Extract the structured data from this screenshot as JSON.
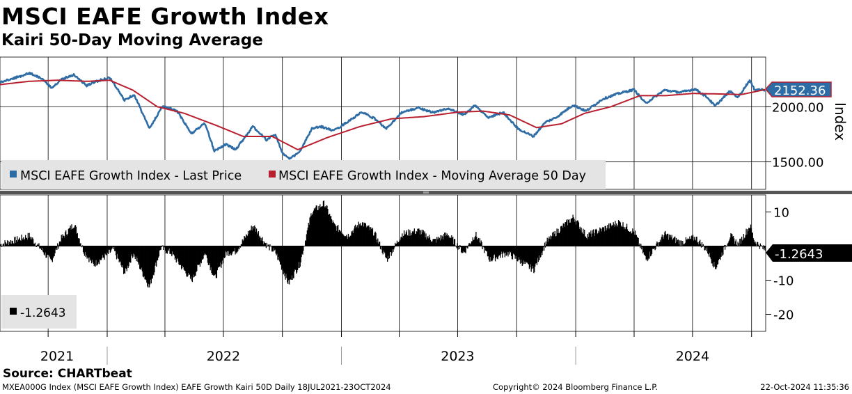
{
  "header": {
    "title": "MSCI EAFE Growth Index",
    "subtitle": "Kairi 50-Day Moving Average"
  },
  "footer": {
    "source": "Source: CHARTbeat",
    "description": "MXEA000G Index (MSCI EAFE Growth Index) EAFE Growth Kairi 50D  Daily 18JUL2021-23OCT2024",
    "copyright": "Copyright© 2024 Bloomberg Finance L.P.",
    "timestamp": "22-Oct-2024 11:35:36"
  },
  "colors": {
    "price": "#2e6ca5",
    "ma": "#b8202f",
    "kairi": "#000000",
    "grid": "#000000"
  },
  "chart_data": [
    {
      "type": "line",
      "panel": "upper",
      "ylabel": "Index",
      "ylim": [
        1250,
        2450
      ],
      "yticks": [
        1500,
        2000
      ],
      "ytick_labels": [
        "1500.00",
        "2000.00"
      ],
      "last_value_label": "2152.36",
      "x_range": [
        "2021-07-18",
        "2024-10-23"
      ],
      "x_year_labels": [
        "2021",
        "2022",
        "2023",
        "2024"
      ],
      "series": [
        {
          "name": "MSCI EAFE Growth Index - Last Price",
          "color": "#2e6ca5",
          "points": [
            [
              "2021-07-18",
              2220
            ],
            [
              "2021-08-10",
              2260
            ],
            [
              "2021-09-02",
              2305
            ],
            [
              "2021-09-20",
              2260
            ],
            [
              "2021-10-06",
              2170
            ],
            [
              "2021-10-22",
              2250
            ],
            [
              "2021-11-10",
              2290
            ],
            [
              "2021-11-30",
              2190
            ],
            [
              "2021-12-15",
              2230
            ],
            [
              "2022-01-05",
              2265
            ],
            [
              "2022-01-28",
              2060
            ],
            [
              "2022-02-12",
              2110
            ],
            [
              "2022-03-08",
              1800
            ],
            [
              "2022-03-28",
              2005
            ],
            [
              "2022-04-20",
              1960
            ],
            [
              "2022-05-12",
              1755
            ],
            [
              "2022-06-02",
              1850
            ],
            [
              "2022-06-17",
              1600
            ],
            [
              "2022-07-05",
              1660
            ],
            [
              "2022-07-20",
              1610
            ],
            [
              "2022-08-16",
              1820
            ],
            [
              "2022-09-06",
              1700
            ],
            [
              "2022-09-20",
              1750
            ],
            [
              "2022-10-01",
              1580
            ],
            [
              "2022-10-12",
              1525
            ],
            [
              "2022-10-28",
              1590
            ],
            [
              "2022-11-16",
              1800
            ],
            [
              "2022-12-01",
              1820
            ],
            [
              "2022-12-20",
              1780
            ],
            [
              "2023-01-15",
              1880
            ],
            [
              "2023-02-02",
              1950
            ],
            [
              "2023-02-22",
              1890
            ],
            [
              "2023-03-12",
              1800
            ],
            [
              "2023-04-04",
              1945
            ],
            [
              "2023-05-01",
              1990
            ],
            [
              "2023-05-25",
              1945
            ],
            [
              "2023-06-15",
              1985
            ],
            [
              "2023-07-10",
              1925
            ],
            [
              "2023-07-28",
              2010
            ],
            [
              "2023-08-18",
              1900
            ],
            [
              "2023-09-10",
              1950
            ],
            [
              "2023-10-03",
              1800
            ],
            [
              "2023-10-27",
              1730
            ],
            [
              "2023-11-15",
              1860
            ],
            [
              "2023-12-01",
              1900
            ],
            [
              "2023-12-28",
              2015
            ],
            [
              "2024-01-17",
              1960
            ],
            [
              "2024-02-12",
              2070
            ],
            [
              "2024-03-08",
              2120
            ],
            [
              "2024-04-01",
              2155
            ],
            [
              "2024-04-19",
              2030
            ],
            [
              "2024-05-18",
              2150
            ],
            [
              "2024-06-12",
              2130
            ],
            [
              "2024-07-05",
              2160
            ],
            [
              "2024-07-24",
              2085
            ],
            [
              "2024-08-05",
              2005
            ],
            [
              "2024-08-28",
              2140
            ],
            [
              "2024-09-10",
              2085
            ],
            [
              "2024-09-28",
              2240
            ],
            [
              "2024-10-05",
              2160
            ],
            [
              "2024-10-22",
              2152
            ]
          ]
        },
        {
          "name": "MSCI EAFE Growth Index - Moving Average 50 Day",
          "color": "#b8202f",
          "points": [
            [
              "2021-07-18",
              2200
            ],
            [
              "2021-09-01",
              2230
            ],
            [
              "2021-10-15",
              2240
            ],
            [
              "2021-12-01",
              2230
            ],
            [
              "2022-01-05",
              2240
            ],
            [
              "2022-02-10",
              2150
            ],
            [
              "2022-03-20",
              2000
            ],
            [
              "2022-05-01",
              1940
            ],
            [
              "2022-06-20",
              1830
            ],
            [
              "2022-08-01",
              1730
            ],
            [
              "2022-09-15",
              1730
            ],
            [
              "2022-10-25",
              1610
            ],
            [
              "2022-12-10",
              1720
            ],
            [
              "2023-01-30",
              1820
            ],
            [
              "2023-03-20",
              1890
            ],
            [
              "2023-05-10",
              1910
            ],
            [
              "2023-07-01",
              1950
            ],
            [
              "2023-08-10",
              1960
            ],
            [
              "2023-09-20",
              1925
            ],
            [
              "2023-11-01",
              1810
            ],
            [
              "2023-12-10",
              1845
            ],
            [
              "2024-01-15",
              1940
            ],
            [
              "2024-02-25",
              2000
            ],
            [
              "2024-04-10",
              2100
            ],
            [
              "2024-05-20",
              2100
            ],
            [
              "2024-07-01",
              2120
            ],
            [
              "2024-08-15",
              2115
            ],
            [
              "2024-09-15",
              2110
            ],
            [
              "2024-10-22",
              2155
            ]
          ]
        }
      ]
    },
    {
      "type": "area",
      "panel": "lower",
      "ylim": [
        -25,
        15
      ],
      "yticks": [
        10,
        -10,
        -20
      ],
      "ytick_labels": [
        "10",
        "-10",
        "-20"
      ],
      "last_value_label": "-1.2643",
      "x_range": [
        "2021-07-18",
        "2024-10-23"
      ],
      "legend": "-1.2643",
      "series": [
        {
          "name": "Kairi 50-Day",
          "color": "#000000",
          "points": [
            [
              "2021-07-18",
              0.5
            ],
            [
              "2021-08-15",
              2.0
            ],
            [
              "2021-09-01",
              3.0
            ],
            [
              "2021-09-20",
              -1.0
            ],
            [
              "2021-10-05",
              -4.5
            ],
            [
              "2021-10-20",
              2.0
            ],
            [
              "2021-11-10",
              6.5
            ],
            [
              "2021-11-25",
              -1.5
            ],
            [
              "2021-12-10",
              -5.5
            ],
            [
              "2021-12-28",
              -3.0
            ],
            [
              "2022-01-10",
              -1.0
            ],
            [
              "2022-01-28",
              -8.0
            ],
            [
              "2022-02-10",
              -2.0
            ],
            [
              "2022-03-07",
              -12.0
            ],
            [
              "2022-03-25",
              -0.5
            ],
            [
              "2022-04-10",
              -2.0
            ],
            [
              "2022-05-12",
              -10.0
            ],
            [
              "2022-06-02",
              -2.0
            ],
            [
              "2022-06-17",
              -9.5
            ],
            [
              "2022-07-05",
              -2.0
            ],
            [
              "2022-07-20",
              -1.5
            ],
            [
              "2022-08-16",
              6.0
            ],
            [
              "2022-09-05",
              0.5
            ],
            [
              "2022-09-20",
              -2.0
            ],
            [
              "2022-10-10",
              -11.0
            ],
            [
              "2022-10-28",
              -5.0
            ],
            [
              "2022-11-15",
              10.0
            ],
            [
              "2022-12-05",
              12.5
            ],
            [
              "2022-12-20",
              6.0
            ],
            [
              "2023-01-10",
              3.0
            ],
            [
              "2023-01-31",
              7.0
            ],
            [
              "2023-02-20",
              4.0
            ],
            [
              "2023-03-12",
              -4.0
            ],
            [
              "2023-04-05",
              3.5
            ],
            [
              "2023-05-01",
              4.5
            ],
            [
              "2023-05-25",
              1.5
            ],
            [
              "2023-06-15",
              3.5
            ],
            [
              "2023-07-10",
              -2.0
            ],
            [
              "2023-07-28",
              3.5
            ],
            [
              "2023-08-20",
              -4.0
            ],
            [
              "2023-09-15",
              -2.0
            ],
            [
              "2023-10-03",
              -4.0
            ],
            [
              "2023-10-27",
              -7.0
            ],
            [
              "2023-11-15",
              1.0
            ],
            [
              "2023-12-01",
              4.0
            ],
            [
              "2023-12-28",
              8.5
            ],
            [
              "2024-01-17",
              3.0
            ],
            [
              "2024-02-12",
              5.0
            ],
            [
              "2024-03-08",
              7.0
            ],
            [
              "2024-04-01",
              4.0
            ],
            [
              "2024-04-19",
              -4.0
            ],
            [
              "2024-05-18",
              3.5
            ],
            [
              "2024-06-12",
              1.0
            ],
            [
              "2024-07-05",
              2.5
            ],
            [
              "2024-07-24",
              -1.5
            ],
            [
              "2024-08-05",
              -6.5
            ],
            [
              "2024-08-28",
              3.0
            ],
            [
              "2024-09-10",
              0.5
            ],
            [
              "2024-09-28",
              6.0
            ],
            [
              "2024-10-05",
              1.5
            ],
            [
              "2024-10-22",
              -1.26
            ]
          ]
        }
      ]
    }
  ]
}
